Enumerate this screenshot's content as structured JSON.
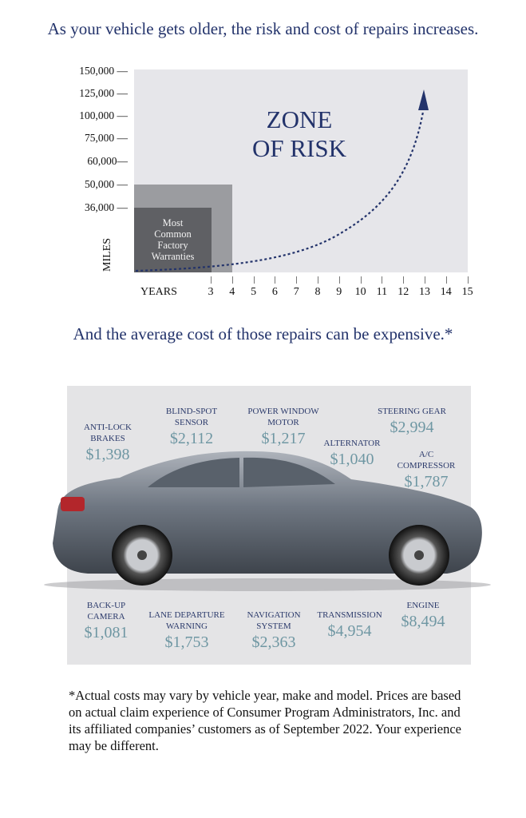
{
  "headline_1": "As your vehicle gets older, the risk and cost of repairs increases.",
  "chart_data": {
    "type": "line",
    "y_axis_label": "MILES",
    "x_axis_label": "YEARS",
    "y_ticks": [
      "150,000 —",
      "125,000 —",
      "100,000 —",
      "75,000 —",
      "60,000—",
      "50,000 —",
      "36,000 —"
    ],
    "x_ticks": [
      "3",
      "4",
      "5",
      "6",
      "7",
      "8",
      "9",
      "10",
      "11",
      "12",
      "13",
      "14",
      "15"
    ],
    "zone_label_line1": "ZONE",
    "zone_label_line2": "OF RISK",
    "warranty_label": [
      "Most",
      "Common",
      "Factory",
      "Warranties"
    ],
    "warranty_boxes": [
      {
        "years": 3,
        "miles": 36000
      },
      {
        "years": 4,
        "miles": 50000
      }
    ],
    "colors": {
      "plot_bg": "#e6e6ea",
      "box_light": "#9b9ca0",
      "box_dark": "#5f6064",
      "curve": "#23336b"
    }
  },
  "headline_2": "And the average cost of those repairs can be expensive.*",
  "repairs": [
    {
      "label": [
        "ANTI-LOCK",
        "BRAKES"
      ],
      "price": "$1,398"
    },
    {
      "label": [
        "BLIND-SPOT",
        "SENSOR"
      ],
      "price": "$2,112"
    },
    {
      "label": [
        "POWER WINDOW",
        "MOTOR"
      ],
      "price": "$1,217"
    },
    {
      "label": [
        "ALTERNATOR"
      ],
      "price": "$1,040"
    },
    {
      "label": [
        "STEERING GEAR"
      ],
      "price": "$2,994"
    },
    {
      "label": [
        "A/C",
        "COMPRESSOR"
      ],
      "price": "$1,787"
    },
    {
      "label": [
        "BACK-UP",
        "CAMERA"
      ],
      "price": "$1,081"
    },
    {
      "label": [
        "LANE DEPARTURE",
        "WARNING"
      ],
      "price": "$1,753"
    },
    {
      "label": [
        "NAVIGATION",
        "SYSTEM"
      ],
      "price": "$2,363"
    },
    {
      "label": [
        "TRANSMISSION"
      ],
      "price": "$4,954"
    },
    {
      "label": [
        "ENGINE"
      ],
      "price": "$8,494"
    }
  ],
  "footnote": "*Actual costs may vary by vehicle year, make and model. Prices are based on actual claim experience of Consumer Program Administrators, Inc. and its affiliated companies’ customers as of September 2022. Your experience may be different.",
  "colors": {
    "label": "#2b3a6b",
    "price": "#6f97a3",
    "panel_bg": "#e4e4e6"
  }
}
